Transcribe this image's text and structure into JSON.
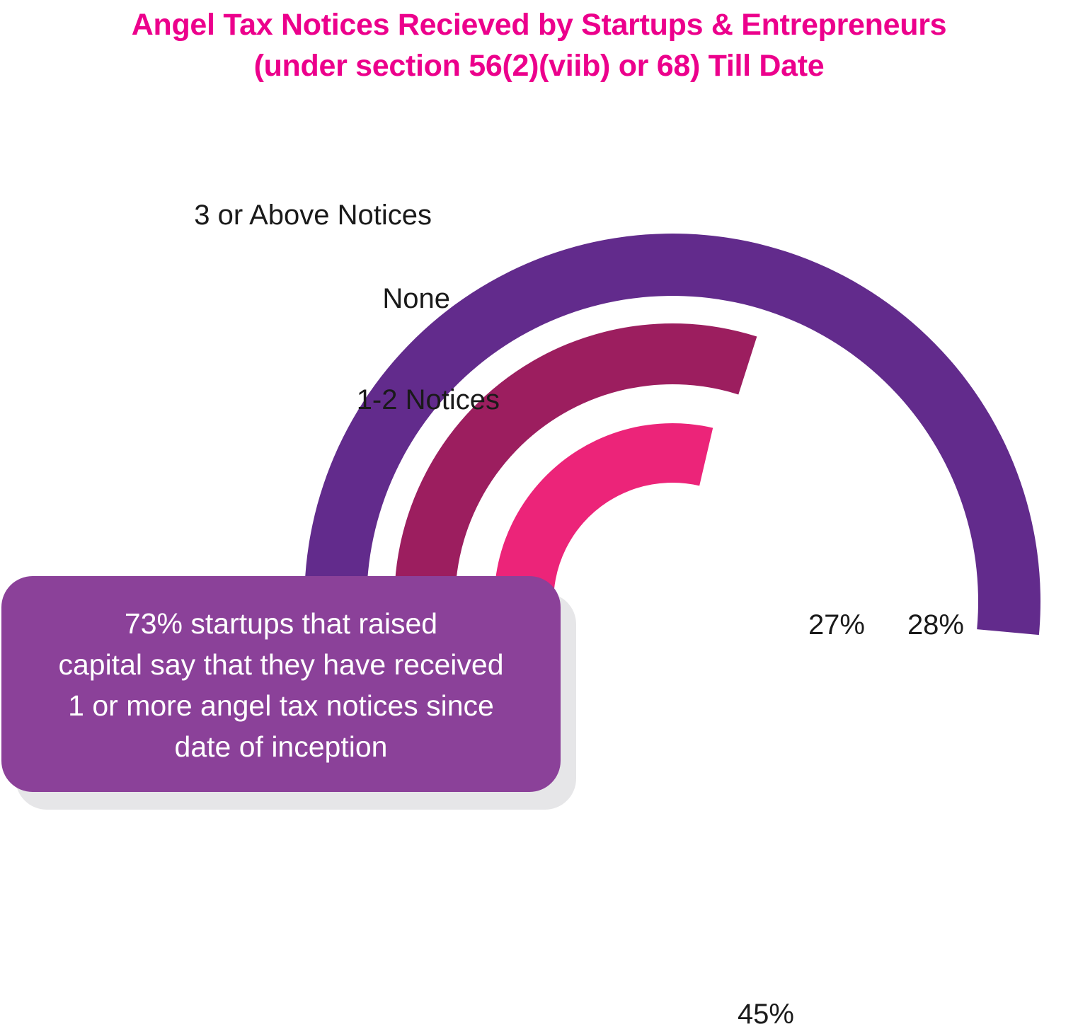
{
  "title_lines": [
    "Angel Tax Notices Recieved by Startups & Entrepreneurs",
    "(under section 56(2)(viib) or 68) Till Date"
  ],
  "chart_data": {
    "type": "radial-bar",
    "title": "Angel Tax Notices Recieved by Startups & Entrepreneurs (under section 56(2)(viib) or 68) Till Date",
    "categories": [
      "3 or Above Notices",
      "None",
      "1-2 Notices"
    ],
    "values": [
      45,
      28,
      27
    ],
    "value_labels": [
      "45%",
      "28%",
      "27%"
    ],
    "unit": "%",
    "colors": [
      "#622b8c",
      "#9c1e5f",
      "#ec2479"
    ]
  },
  "note_lines": [
    "73% startups that raised",
    "capital say that they have received",
    "1 or more angel tax notices since",
    "date of inception"
  ],
  "colors": {
    "title": "#ec008c",
    "note_background": "#8b4199",
    "note_shadow": "#e6e6e8"
  }
}
